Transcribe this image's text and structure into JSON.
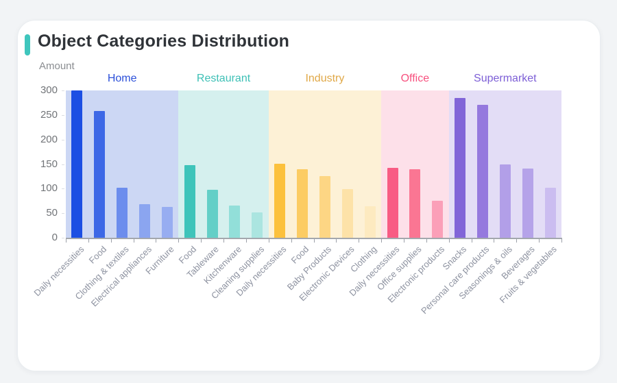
{
  "page": {
    "background_color": "#f2f4f6",
    "card_background": "#ffffff",
    "accent_color": "#3fc6bd"
  },
  "chart_data": {
    "type": "bar",
    "title": "Object Categories Distribution",
    "ylabel": "Amount",
    "xlabel": "",
    "ylim": [
      0,
      300
    ],
    "yticks": [
      0,
      50,
      100,
      150,
      200,
      250,
      300
    ],
    "grid": false,
    "legend_position": "none",
    "axis_color": "#a3a7ad",
    "groups": [
      {
        "name": "Home",
        "label_color": "#2c50d9",
        "band_color": "#ccd7f4",
        "categories": [
          "Daily necessities",
          "Food",
          "Clothing & textiles",
          "Electrical appliances",
          "Furniture"
        ],
        "values": [
          300,
          258,
          102,
          68,
          63
        ],
        "bar_colors": [
          "#1c4fe3",
          "#3d68e6",
          "#6c8ded",
          "#8ba5f0",
          "#97adf1"
        ]
      },
      {
        "name": "Restaurant",
        "label_color": "#3ec0b6",
        "band_color": "#d5f0ee",
        "categories": [
          "Food",
          "Tableware",
          "Kitchenware",
          "Cleaning supplies"
        ],
        "values": [
          148,
          98,
          65,
          51
        ],
        "bar_colors": [
          "#3ec4ba",
          "#63cfc7",
          "#92dfd9",
          "#abe5e0"
        ]
      },
      {
        "name": "Industry",
        "label_color": "#e0a847",
        "band_color": "#fdf1d6",
        "categories": [
          "Daily necessities",
          "Food",
          "Baby Products",
          "Electronic Devices",
          "Clothing"
        ],
        "values": [
          150,
          139,
          126,
          99,
          64
        ],
        "bar_colors": [
          "#fcc13d",
          "#fccc63",
          "#fdd684",
          "#fde2a8",
          "#fdeac0"
        ]
      },
      {
        "name": "Office",
        "label_color": "#f7507e",
        "band_color": "#fde0e9",
        "categories": [
          "Daily necessities",
          "Office supplies",
          "Electronic products"
        ],
        "values": [
          143,
          139,
          75
        ],
        "bar_colors": [
          "#f85c84",
          "#fa7693",
          "#fb9fb8"
        ]
      },
      {
        "name": "Supermarket",
        "label_color": "#7c5ed6",
        "band_color": "#e3ddf6",
        "categories": [
          "Snacks",
          "Personal care products",
          "Seasonings & oils",
          "Beverages",
          "Fruits & vegetables"
        ],
        "values": [
          285,
          271,
          149,
          141,
          102
        ],
        "bar_colors": [
          "#8165d8",
          "#9579de",
          "#b29fe8",
          "#b5a3e9",
          "#cbbdf0"
        ]
      }
    ]
  }
}
